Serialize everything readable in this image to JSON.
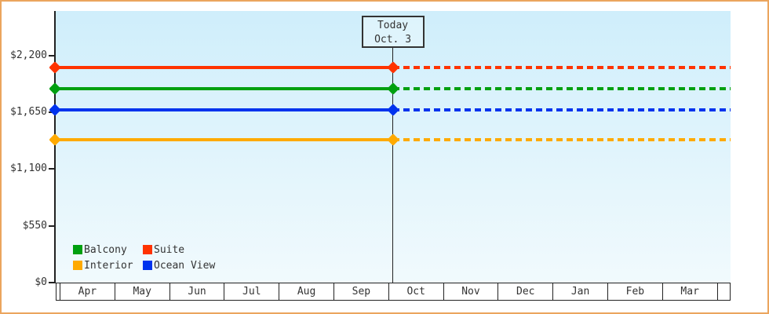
{
  "chart_data": {
    "type": "line",
    "title": "",
    "description": "Price history chart: constant price lines per cabin type, solid before today, dashed (forecast) after today",
    "x_axis": {
      "months": [
        "Apr",
        "May",
        "Jun",
        "Jul",
        "Aug",
        "Sep",
        "Oct",
        "Nov",
        "Dec",
        "Jan",
        "Feb",
        "Mar"
      ],
      "trailing_partial_cell": true
    },
    "y_axis": {
      "ticks": [
        {
          "label": "$0",
          "value": 0
        },
        {
          "label": "$550",
          "value": 550
        },
        {
          "label": "$1,100",
          "value": 1100
        },
        {
          "label": "$1,650",
          "value": 1650
        },
        {
          "label": "$2,200",
          "value": 2200
        }
      ],
      "ylim": [
        0,
        2630
      ]
    },
    "today": {
      "label_line1": "Today",
      "label_line2": "Oct. 3",
      "month": "Oct",
      "day": 3
    },
    "series": [
      {
        "name": "Suite",
        "color": "#ff3300",
        "value": 2080
      },
      {
        "name": "Balcony",
        "color": "#00a010",
        "value": 1875
      },
      {
        "name": "Ocean View",
        "color": "#0033ee",
        "value": 1675
      },
      {
        "name": "Interior",
        "color": "#ffaa00",
        "value": 1380
      }
    ],
    "legend": {
      "position": "bottom-left-inside-plot",
      "rows": [
        [
          "Balcony",
          "Suite"
        ],
        [
          "Interior",
          "Ocean View"
        ]
      ]
    },
    "line_style": {
      "before_today": "solid",
      "after_today": "dashed"
    }
  },
  "colors": {
    "frame_border": "#eba55e",
    "plot_bg_top": "#cfeefb",
    "plot_bg_bottom": "#f1fafd",
    "axis": "#222222",
    "text": "#333333"
  }
}
